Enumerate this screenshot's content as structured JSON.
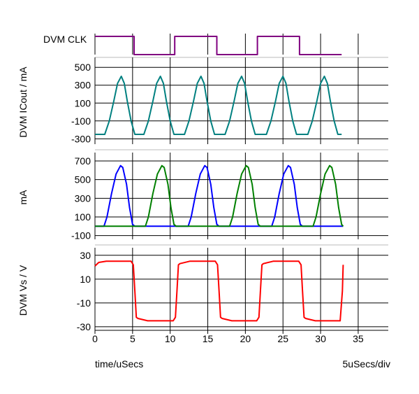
{
  "chart_data": {
    "type": "line",
    "x_unit_label": "time/uSecs",
    "x_scale_label": "5uSecs/div",
    "xlim": [
      0,
      39
    ],
    "x_ticks": [
      "0",
      "5",
      "10",
      "15",
      "20",
      "25",
      "30",
      "35"
    ],
    "x_tick_values": [
      0,
      5,
      10,
      15,
      20,
      25,
      30,
      35
    ],
    "panels": [
      {
        "id": "clk",
        "ylabel": "DVM CLK",
        "ylim": [
          0,
          1
        ],
        "y_ticks": [],
        "series": [
          {
            "color": "#800080",
            "x": [
              0,
              5.2,
              5.2,
              10.6,
              10.6,
              16.2,
              16.2,
              21.6,
              21.6,
              27.2,
              27.2,
              32.8
            ],
            "values": [
              1,
              1,
              0,
              0,
              1,
              1,
              0,
              0,
              1,
              1,
              0,
              0
            ]
          }
        ]
      },
      {
        "id": "icout",
        "ylabel": "DVM ICout / mA",
        "ylim": [
          -360,
          580
        ],
        "y_ticks": [
          "500",
          "300",
          "100",
          "-100",
          "-300"
        ],
        "y_tick_values": [
          500,
          300,
          100,
          -100,
          -300
        ],
        "series": [
          {
            "color": "#008080",
            "x": [
              0,
              1.3,
              1.9,
              2.5,
              3.0,
              3.5,
              3.9,
              4.3,
              4.8,
              5.3,
              6.5,
              7.1,
              7.7,
              8.2,
              8.7,
              9.1,
              9.5,
              10.0,
              10.5,
              11.9,
              12.5,
              13.1,
              13.6,
              14.1,
              14.5,
              14.9,
              15.4,
              15.9,
              17.3,
              17.9,
              18.5,
              19.0,
              19.5,
              19.9,
              20.3,
              20.8,
              21.3,
              22.8,
              23.4,
              24.0,
              24.5,
              25.0,
              25.4,
              25.8,
              26.3,
              26.8,
              28.3,
              28.9,
              29.5,
              30.0,
              30.5,
              30.9,
              31.3,
              31.8,
              32.3,
              32.8
            ],
            "values": [
              -250,
              -250,
              -100,
              120,
              320,
              400,
              320,
              120,
              -100,
              -250,
              -250,
              -100,
              120,
              320,
              400,
              320,
              120,
              -100,
              -250,
              -250,
              -100,
              120,
              320,
              400,
              320,
              120,
              -100,
              -250,
              -250,
              -100,
              120,
              320,
              400,
              320,
              120,
              -100,
              -250,
              -250,
              -100,
              120,
              320,
              400,
              320,
              120,
              -100,
              -250,
              -250,
              -100,
              120,
              320,
              400,
              320,
              120,
              -100,
              -250,
              -250
            ]
          }
        ]
      },
      {
        "id": "ma",
        "ylabel": "mA",
        "ylim": [
          -140,
          760
        ],
        "y_ticks": [
          "700",
          "500",
          "300",
          "100",
          "-100"
        ],
        "y_tick_values": [
          700,
          500,
          300,
          100,
          -100
        ],
        "series": [
          {
            "color": "#0000ff",
            "x": [
              0,
              1.2,
              1.6,
              2.2,
              2.8,
              3.4,
              3.7,
              4.2,
              4.6,
              5.0,
              5.3,
              12.4,
              12.8,
              13.4,
              14.0,
              14.6,
              14.9,
              15.4,
              15.8,
              16.2,
              16.5,
              23.5,
              23.9,
              24.5,
              25.1,
              25.7,
              26.0,
              26.5,
              26.9,
              27.3,
              27.6,
              33.0
            ],
            "values": [
              0,
              0,
              100,
              350,
              560,
              650,
              630,
              450,
              200,
              20,
              0,
              0,
              100,
              350,
              560,
              650,
              630,
              450,
              200,
              20,
              0,
              0,
              100,
              350,
              560,
              650,
              630,
              450,
              200,
              20,
              0,
              0
            ]
          },
          {
            "color": "#008000",
            "x": [
              0,
              6.7,
              7.1,
              7.7,
              8.3,
              8.9,
              9.2,
              9.7,
              10.1,
              10.5,
              10.8,
              17.9,
              18.3,
              18.9,
              19.5,
              20.1,
              20.4,
              20.9,
              21.3,
              21.7,
              22.0,
              29.0,
              29.4,
              30.0,
              30.6,
              31.2,
              31.5,
              32.0,
              32.4,
              32.8,
              33.0
            ],
            "values": [
              0,
              0,
              100,
              350,
              560,
              650,
              630,
              450,
              200,
              20,
              0,
              0,
              100,
              350,
              560,
              650,
              630,
              450,
              200,
              20,
              0,
              0,
              100,
              350,
              560,
              650,
              630,
              450,
              200,
              20,
              0
            ]
          }
        ]
      },
      {
        "id": "vs",
        "ylabel": "DVM Vs / V",
        "ylim": [
          -33,
          34
        ],
        "y_ticks": [
          "30",
          "10",
          "-10",
          "-30"
        ],
        "y_tick_values": [
          30,
          10,
          -10,
          -30
        ],
        "series": [
          {
            "color": "#ff0000",
            "x": [
              0,
              0.5,
              1.5,
              4.8,
              5.1,
              5.3,
              5.5,
              5.7,
              7.0,
              10.4,
              10.7,
              10.9,
              11.1,
              11.3,
              12.6,
              16.0,
              16.3,
              16.5,
              16.7,
              16.9,
              18.2,
              21.5,
              21.8,
              22.0,
              22.2,
              22.4,
              23.7,
              27.1,
              27.4,
              27.6,
              27.8,
              28.0,
              29.3,
              32.6,
              32.9,
              33.0
            ],
            "values": [
              21,
              24,
              25,
              25,
              22,
              0,
              -22,
              -23,
              -25,
              -25,
              -22,
              0,
              22,
              23,
              25,
              25,
              22,
              0,
              -22,
              -23,
              -25,
              -25,
              -22,
              0,
              22,
              23,
              25,
              25,
              22,
              0,
              -22,
              -23,
              -25,
              -25,
              0,
              22
            ]
          }
        ]
      }
    ]
  }
}
